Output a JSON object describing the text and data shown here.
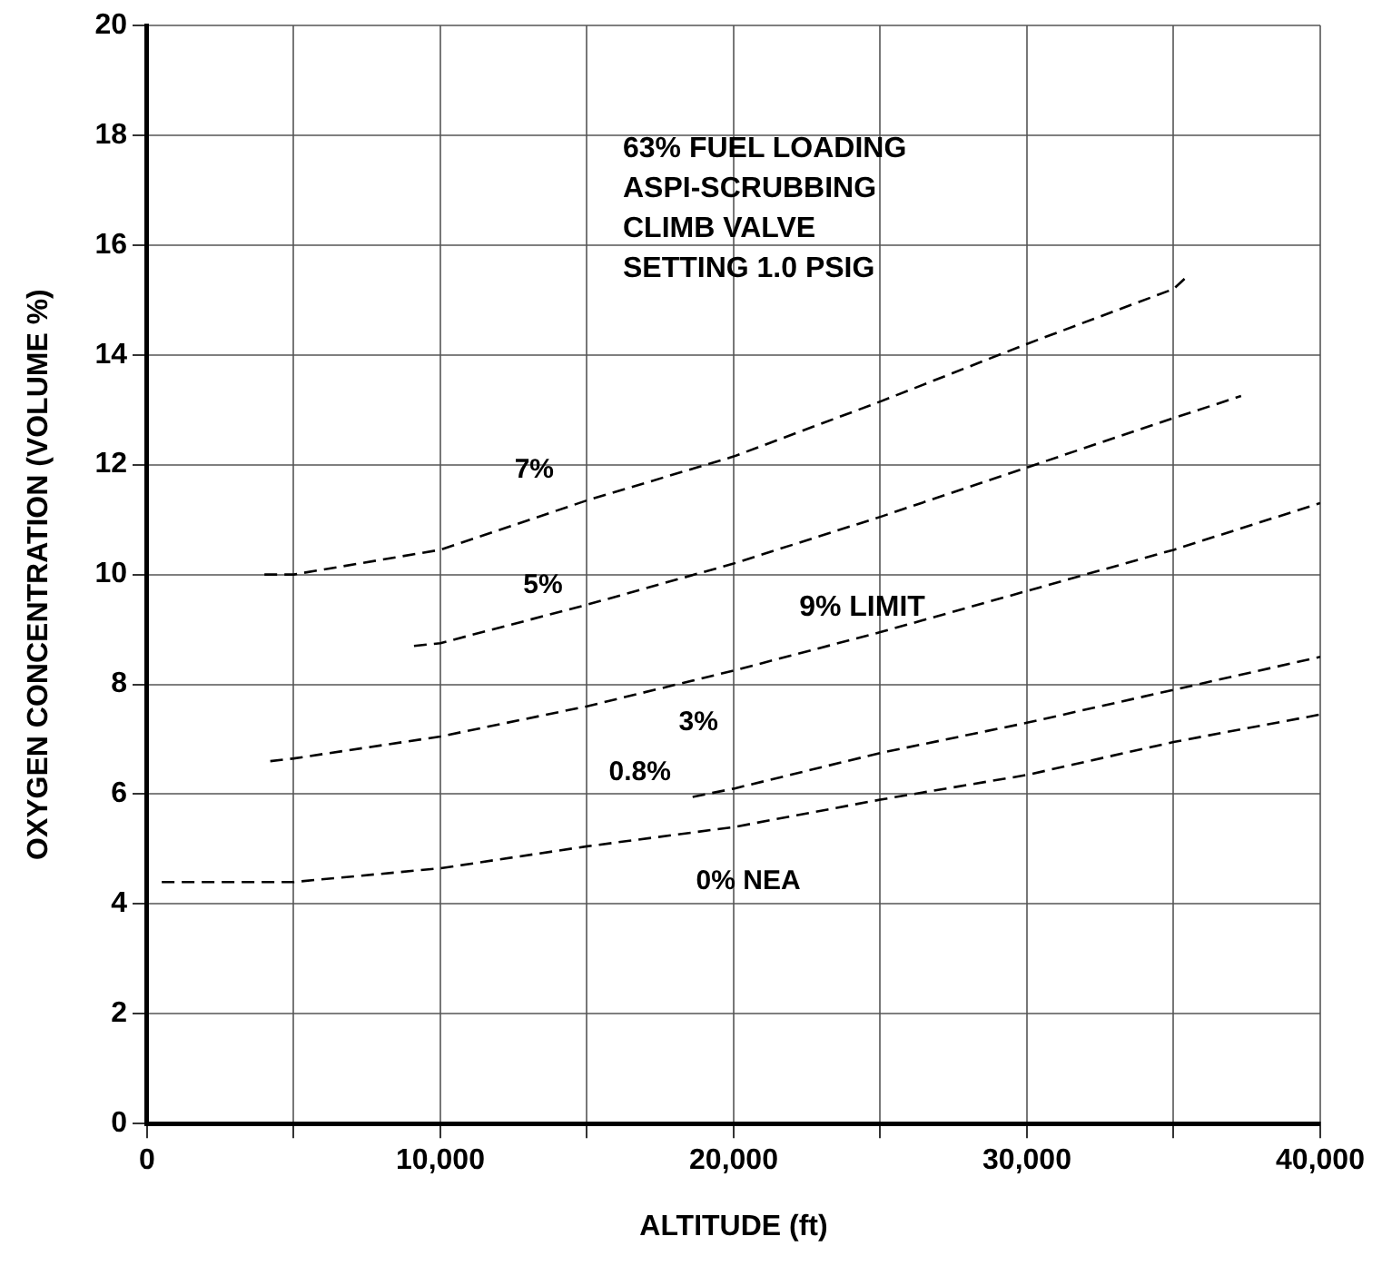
{
  "chart_data": {
    "type": "line",
    "xlabel": "ALTITUDE (ft)",
    "ylabel": "OXYGEN CONCENTRATION (VOLUME %)",
    "xlim": [
      0,
      40000
    ],
    "ylim": [
      0,
      20
    ],
    "xticks": [
      0,
      {
        "value": 5000,
        "label": null
      },
      {
        "value": 10000,
        "label": "10,000"
      },
      {
        "value": 15000,
        "label": null
      },
      {
        "value": 20000,
        "label": "20,000"
      },
      {
        "value": 25000,
        "label": null
      },
      {
        "value": 30000,
        "label": "30,000"
      },
      {
        "value": 35000,
        "label": null
      },
      {
        "value": 40000,
        "label": "40,000"
      }
    ],
    "yticks": [
      0,
      2,
      4,
      6,
      8,
      10,
      12,
      14,
      16,
      18,
      20
    ],
    "grid": true,
    "legend": false,
    "marker": "none",
    "line_style": "dashed",
    "series": [
      {
        "name": "7%",
        "color": "#000000",
        "x": [
          4000,
          5000,
          10000,
          15000,
          20000,
          25000,
          30000,
          35000,
          35400
        ],
        "values": [
          10.0,
          10.0,
          10.45,
          11.35,
          12.15,
          13.15,
          14.2,
          15.2,
          15.4
        ]
      },
      {
        "name": "5%",
        "color": "#000000",
        "x": [
          9100,
          10000,
          15000,
          20000,
          25000,
          30000,
          35000,
          37300
        ],
        "values": [
          8.7,
          8.75,
          9.45,
          10.2,
          11.05,
          11.95,
          12.85,
          13.25
        ]
      },
      {
        "name": "3%",
        "color": "#000000",
        "x": [
          4200,
          5000,
          10000,
          15000,
          20000,
          25000,
          30000,
          35000,
          40000
        ],
        "values": [
          6.6,
          6.65,
          7.05,
          7.6,
          8.25,
          8.95,
          9.7,
          10.45,
          11.3
        ]
      },
      {
        "name": "0.8%",
        "color": "#000000",
        "x": [
          18600,
          20000,
          25000,
          30000,
          35000,
          40000
        ],
        "values": [
          5.95,
          6.1,
          6.75,
          7.3,
          7.9,
          8.5
        ]
      },
      {
        "name": "0% NEA",
        "color": "#000000",
        "x": [
          500,
          5000,
          10000,
          15000,
          20000,
          25000,
          30000,
          35000,
          40000
        ],
        "values": [
          4.4,
          4.4,
          4.65,
          5.05,
          5.4,
          5.9,
          6.35,
          6.95,
          7.45
        ]
      }
    ],
    "annotations": [
      "63% FUEL LOADING",
      "ASPI-SCRUBBING",
      "CLIMB VALVE",
      "SETTING 1.0 PSIG",
      {
        "text": "9% LIMIT",
        "x": 25000,
        "y": 9
      }
    ]
  }
}
